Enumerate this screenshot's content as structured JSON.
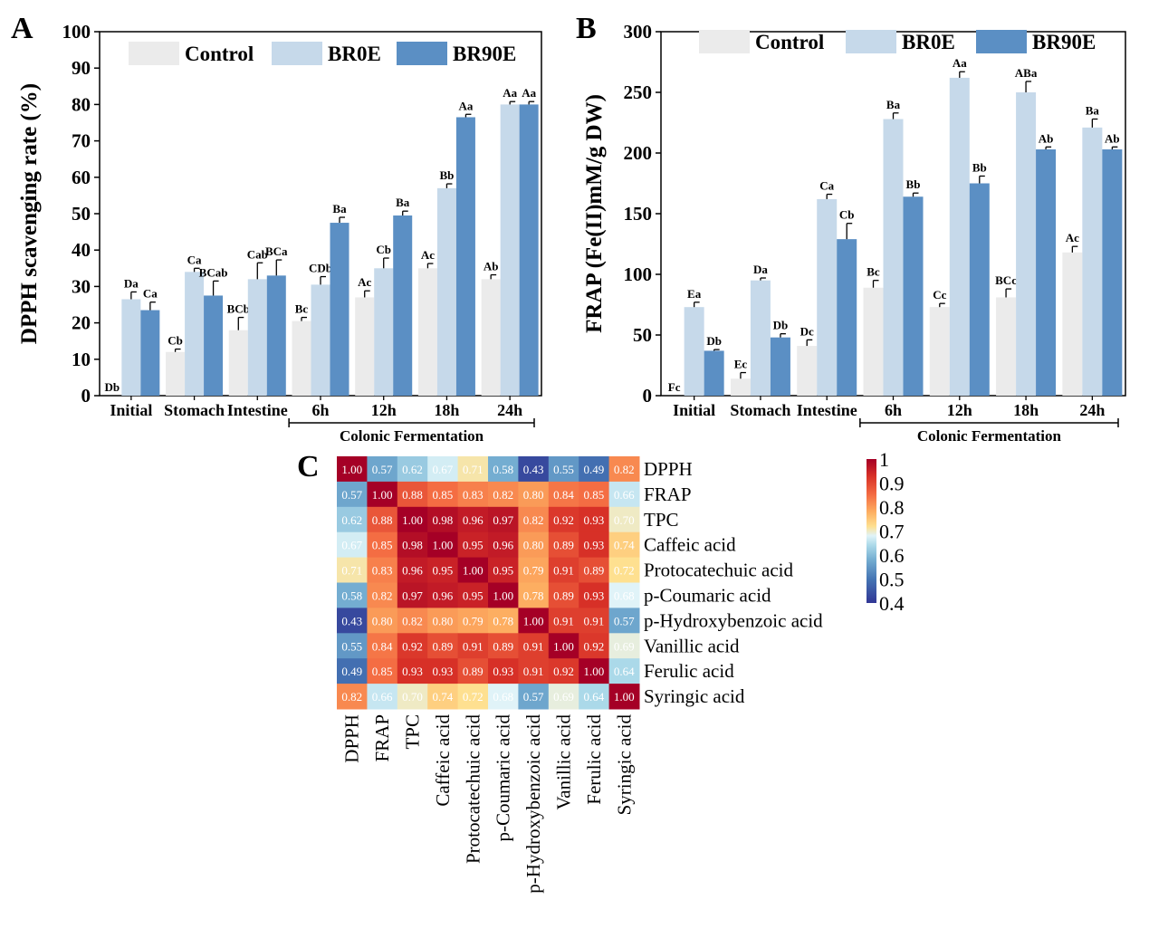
{
  "panel_labels": {
    "a": "A",
    "b": "B",
    "c": "C"
  },
  "colors": {
    "control": "#ebebeb",
    "br0e": "#c6d9ea",
    "br90e": "#5b8fc4"
  },
  "chart_data": [
    {
      "type": "bar",
      "panel": "A",
      "ylabel": "DPPH scavenging rate (%)",
      "xlabel": "",
      "ylim": [
        0,
        100
      ],
      "yticks": [
        0,
        10,
        20,
        30,
        40,
        50,
        60,
        70,
        80,
        90,
        100
      ],
      "categories": [
        "Initial",
        "Stomach",
        "Intestine",
        "6h",
        "12h",
        "18h",
        "24h"
      ],
      "group_label": "Colonic Fermentation",
      "group_start": "6h",
      "legend": "top",
      "series": [
        {
          "name": "Control",
          "values": [
            0,
            12,
            18,
            20.5,
            27,
            35,
            32
          ],
          "errors": [
            0,
            0.8,
            3.5,
            1,
            1.8,
            1.3,
            1.2
          ],
          "letters": [
            "Db",
            "Cb",
            "BCb",
            "Bc",
            "Ac",
            "Ac",
            "Ab"
          ]
        },
        {
          "name": "BR0E",
          "values": [
            26.5,
            34,
            32,
            30.5,
            35,
            57,
            80
          ],
          "errors": [
            2,
            1,
            4.5,
            2.2,
            2.8,
            1.2,
            0.8
          ],
          "letters": [
            "Da",
            "Ca",
            "Cab",
            "CDb",
            "Cb",
            "Bb",
            "Aa"
          ]
        },
        {
          "name": "BR90E",
          "values": [
            23.5,
            27.5,
            33,
            47.5,
            49.5,
            76.5,
            80
          ],
          "errors": [
            2.2,
            4,
            4.3,
            1.5,
            1.2,
            0.8,
            0.8
          ],
          "letters": [
            "Ca",
            "BCab",
            "BCa",
            "Ba",
            "Ba",
            "Aa",
            "Aa"
          ]
        }
      ]
    },
    {
      "type": "bar",
      "panel": "B",
      "ylabel": "FRAP (Fe(II)mM/g DW)",
      "xlabel": "",
      "ylim": [
        0,
        300
      ],
      "yticks": [
        0,
        50,
        100,
        150,
        200,
        250,
        300
      ],
      "categories": [
        "Initial",
        "Stomach",
        "Intestine",
        "6h",
        "12h",
        "18h",
        "24h"
      ],
      "group_label": "Colonic Fermentation",
      "group_start": "6h",
      "legend": "top",
      "series": [
        {
          "name": "Control",
          "values": [
            0,
            14,
            41,
            89,
            73,
            81,
            118
          ],
          "errors": [
            0,
            5,
            5,
            6,
            3,
            7,
            5
          ],
          "letters": [
            "Fc",
            "Ec",
            "Dc",
            "Bc",
            "Cc",
            "BCc",
            "Ac"
          ]
        },
        {
          "name": "BR0E",
          "values": [
            73,
            95,
            162,
            228,
            262,
            250,
            221
          ],
          "errors": [
            4,
            2,
            4,
            5,
            5,
            9,
            7
          ],
          "letters": [
            "Ea",
            "Da",
            "Ca",
            "Ba",
            "Aa",
            "ABa",
            "Ba"
          ]
        },
        {
          "name": "BR90E",
          "values": [
            37,
            48,
            129,
            164,
            175,
            203,
            203
          ],
          "errors": [
            1,
            3,
            13,
            3,
            6,
            2,
            2
          ],
          "letters": [
            "Db",
            "Db",
            "Cb",
            "Bb",
            "Bb",
            "Ab",
            "Ab"
          ]
        }
      ]
    },
    {
      "type": "heatmap",
      "panel": "C",
      "labels": [
        "DPPH",
        "FRAP",
        "TPC",
        "Caffeic acid",
        "Protocatechuic acid",
        "p-Coumaric acid",
        "p-Hydroxybenzoic acid",
        "Vanillic acid",
        "Ferulic acid",
        "Syringic acid"
      ],
      "matrix": [
        [
          1.0,
          0.57,
          0.62,
          0.67,
          0.71,
          0.58,
          0.43,
          0.55,
          0.49,
          0.82
        ],
        [
          0.57,
          1.0,
          0.88,
          0.85,
          0.83,
          0.82,
          0.8,
          0.84,
          0.85,
          0.66
        ],
        [
          0.62,
          0.88,
          1.0,
          0.98,
          0.96,
          0.97,
          0.82,
          0.92,
          0.93,
          0.7
        ],
        [
          0.67,
          0.85,
          0.98,
          1.0,
          0.95,
          0.96,
          0.8,
          0.89,
          0.93,
          0.74
        ],
        [
          0.71,
          0.83,
          0.96,
          0.95,
          1.0,
          0.95,
          0.79,
          0.91,
          0.89,
          0.72
        ],
        [
          0.58,
          0.82,
          0.97,
          0.96,
          0.95,
          1.0,
          0.78,
          0.89,
          0.93,
          0.68
        ],
        [
          0.43,
          0.8,
          0.82,
          0.8,
          0.79,
          0.78,
          1.0,
          0.91,
          0.91,
          0.57
        ],
        [
          0.55,
          0.84,
          0.92,
          0.89,
          0.91,
          0.89,
          0.91,
          1.0,
          0.92,
          0.69
        ],
        [
          0.49,
          0.85,
          0.93,
          0.93,
          0.89,
          0.93,
          0.91,
          0.92,
          1.0,
          0.64
        ],
        [
          0.82,
          0.66,
          0.7,
          0.74,
          0.72,
          0.68,
          0.57,
          0.69,
          0.64,
          1.0
        ]
      ],
      "colorbar": {
        "range": [
          0.4,
          1
        ],
        "ticks": [
          "0.4",
          "0.5",
          "0.6",
          "0.7",
          "0.8",
          "0.9",
          "1"
        ]
      }
    }
  ]
}
